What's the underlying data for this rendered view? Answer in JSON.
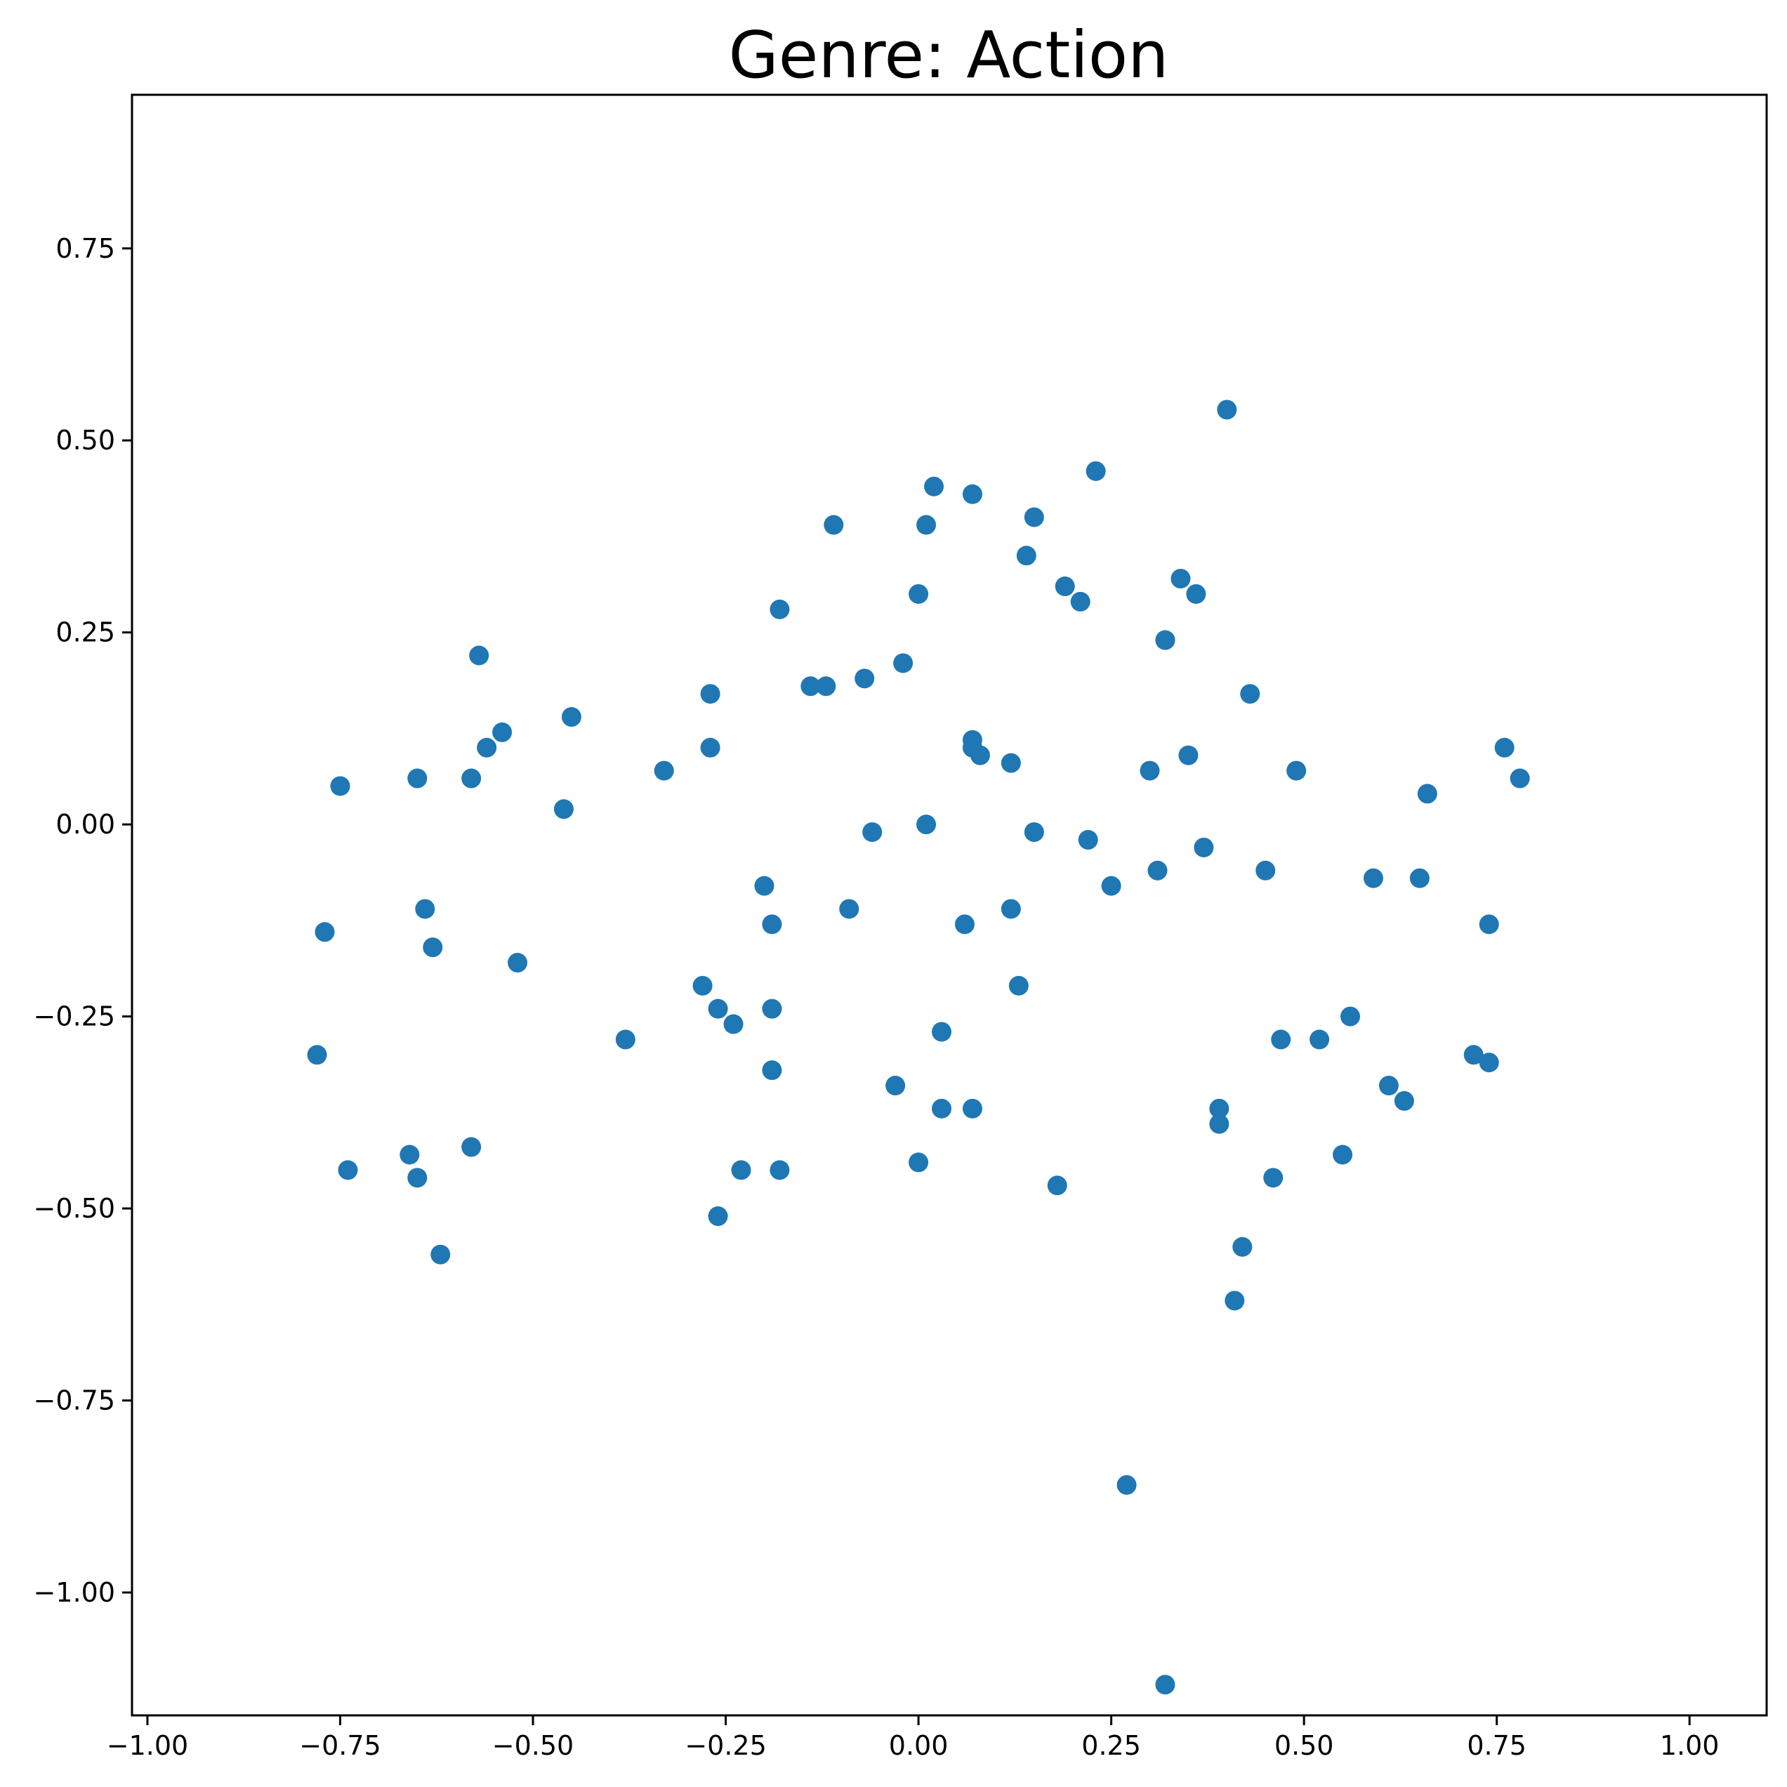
{
  "chart_data": {
    "type": "scatter",
    "title": "Genre: Action",
    "xlabel": "",
    "ylabel": "",
    "xlim": [
      -1.02,
      1.1
    ],
    "ylim": [
      -1.16,
      0.95
    ],
    "xticks": [
      -1.0,
      -0.75,
      -0.5,
      -0.25,
      0.0,
      0.25,
      0.5,
      0.75,
      1.0
    ],
    "xtick_labels": [
      "−1.00",
      "−0.75",
      "−0.50",
      "−0.25",
      "0.00",
      "0.25",
      "0.50",
      "0.75",
      "1.00"
    ],
    "yticks": [
      -1.0,
      -0.75,
      -0.5,
      -0.25,
      0.0,
      0.25,
      0.5,
      0.75
    ],
    "ytick_labels": [
      "−1.00",
      "−0.75",
      "−0.50",
      "−0.25",
      "0.00",
      "0.25",
      "0.50",
      "0.75"
    ],
    "grid": false,
    "color": "#1f77b4",
    "points": [
      {
        "x": 0.4,
        "y": 0.54
      },
      {
        "x": 0.23,
        "y": 0.46
      },
      {
        "x": 0.02,
        "y": 0.44
      },
      {
        "x": 0.07,
        "y": 0.43
      },
      {
        "x": 0.15,
        "y": 0.4
      },
      {
        "x": -0.11,
        "y": 0.39
      },
      {
        "x": 0.01,
        "y": 0.39
      },
      {
        "x": 0.14,
        "y": 0.35
      },
      {
        "x": 0.34,
        "y": 0.32
      },
      {
        "x": 0.19,
        "y": 0.31
      },
      {
        "x": 0.36,
        "y": 0.3
      },
      {
        "x": 0.0,
        "y": 0.3
      },
      {
        "x": 0.21,
        "y": 0.29
      },
      {
        "x": -0.18,
        "y": 0.28
      },
      {
        "x": 0.32,
        "y": 0.24
      },
      {
        "x": 0.32,
        "y": 0.24
      },
      {
        "x": -0.57,
        "y": 0.22
      },
      {
        "x": -0.02,
        "y": 0.21
      },
      {
        "x": -0.07,
        "y": 0.19
      },
      {
        "x": -0.14,
        "y": 0.18
      },
      {
        "x": -0.12,
        "y": 0.18
      },
      {
        "x": -0.27,
        "y": 0.17
      },
      {
        "x": 0.43,
        "y": 0.17
      },
      {
        "x": -0.45,
        "y": 0.14
      },
      {
        "x": -0.54,
        "y": 0.12
      },
      {
        "x": 0.07,
        "y": 0.11
      },
      {
        "x": 0.76,
        "y": 0.1
      },
      {
        "x": -0.27,
        "y": 0.1
      },
      {
        "x": -0.56,
        "y": 0.1
      },
      {
        "x": 0.07,
        "y": 0.1
      },
      {
        "x": 0.08,
        "y": 0.09
      },
      {
        "x": 0.35,
        "y": 0.09
      },
      {
        "x": 0.12,
        "y": 0.08
      },
      {
        "x": 0.3,
        "y": 0.07
      },
      {
        "x": 0.49,
        "y": 0.07
      },
      {
        "x": -0.33,
        "y": 0.07
      },
      {
        "x": -0.58,
        "y": 0.06
      },
      {
        "x": -0.65,
        "y": 0.06
      },
      {
        "x": 0.78,
        "y": 0.06
      },
      {
        "x": -0.75,
        "y": 0.05
      },
      {
        "x": 0.66,
        "y": 0.04
      },
      {
        "x": -0.46,
        "y": 0.02
      },
      {
        "x": 0.01,
        "y": 0.0
      },
      {
        "x": 0.15,
        "y": -0.01
      },
      {
        "x": -0.06,
        "y": -0.01
      },
      {
        "x": 0.22,
        "y": -0.02
      },
      {
        "x": 0.37,
        "y": -0.03
      },
      {
        "x": 0.45,
        "y": -0.06
      },
      {
        "x": 0.31,
        "y": -0.06
      },
      {
        "x": 0.59,
        "y": -0.07
      },
      {
        "x": 0.65,
        "y": -0.07
      },
      {
        "x": -0.2,
        "y": -0.08
      },
      {
        "x": 0.25,
        "y": -0.08
      },
      {
        "x": -0.09,
        "y": -0.11
      },
      {
        "x": 0.12,
        "y": -0.11
      },
      {
        "x": -0.64,
        "y": -0.11
      },
      {
        "x": 0.06,
        "y": -0.13
      },
      {
        "x": 0.74,
        "y": -0.13
      },
      {
        "x": -0.19,
        "y": -0.13
      },
      {
        "x": -0.77,
        "y": -0.14
      },
      {
        "x": -0.63,
        "y": -0.16
      },
      {
        "x": -0.52,
        "y": -0.18
      },
      {
        "x": 0.13,
        "y": -0.21
      },
      {
        "x": -0.28,
        "y": -0.21
      },
      {
        "x": -0.26,
        "y": -0.24
      },
      {
        "x": -0.19,
        "y": -0.24
      },
      {
        "x": 0.56,
        "y": -0.25
      },
      {
        "x": -0.24,
        "y": -0.26
      },
      {
        "x": 0.03,
        "y": -0.27
      },
      {
        "x": -0.38,
        "y": -0.28
      },
      {
        "x": 0.47,
        "y": -0.28
      },
      {
        "x": 0.52,
        "y": -0.28
      },
      {
        "x": 0.72,
        "y": -0.3
      },
      {
        "x": -0.78,
        "y": -0.3
      },
      {
        "x": 0.74,
        "y": -0.31
      },
      {
        "x": -0.19,
        "y": -0.32
      },
      {
        "x": -0.03,
        "y": -0.34
      },
      {
        "x": 0.61,
        "y": -0.34
      },
      {
        "x": 0.63,
        "y": -0.36
      },
      {
        "x": 0.03,
        "y": -0.37
      },
      {
        "x": 0.07,
        "y": -0.37
      },
      {
        "x": 0.39,
        "y": -0.37
      },
      {
        "x": 0.39,
        "y": -0.39
      },
      {
        "x": -0.58,
        "y": -0.42
      },
      {
        "x": -0.66,
        "y": -0.43
      },
      {
        "x": 0.55,
        "y": -0.43
      },
      {
        "x": -0.18,
        "y": -0.45
      },
      {
        "x": -0.23,
        "y": -0.45
      },
      {
        "x": -0.74,
        "y": -0.45
      },
      {
        "x": -0.65,
        "y": -0.46
      },
      {
        "x": 0.0,
        "y": -0.44
      },
      {
        "x": 0.46,
        "y": -0.46
      },
      {
        "x": 0.18,
        "y": -0.47
      },
      {
        "x": -0.26,
        "y": -0.51
      },
      {
        "x": 0.42,
        "y": -0.55
      },
      {
        "x": -0.62,
        "y": -0.56
      },
      {
        "x": 0.41,
        "y": -0.62
      },
      {
        "x": 0.27,
        "y": -0.86
      },
      {
        "x": 0.32,
        "y": -1.12
      }
    ]
  }
}
